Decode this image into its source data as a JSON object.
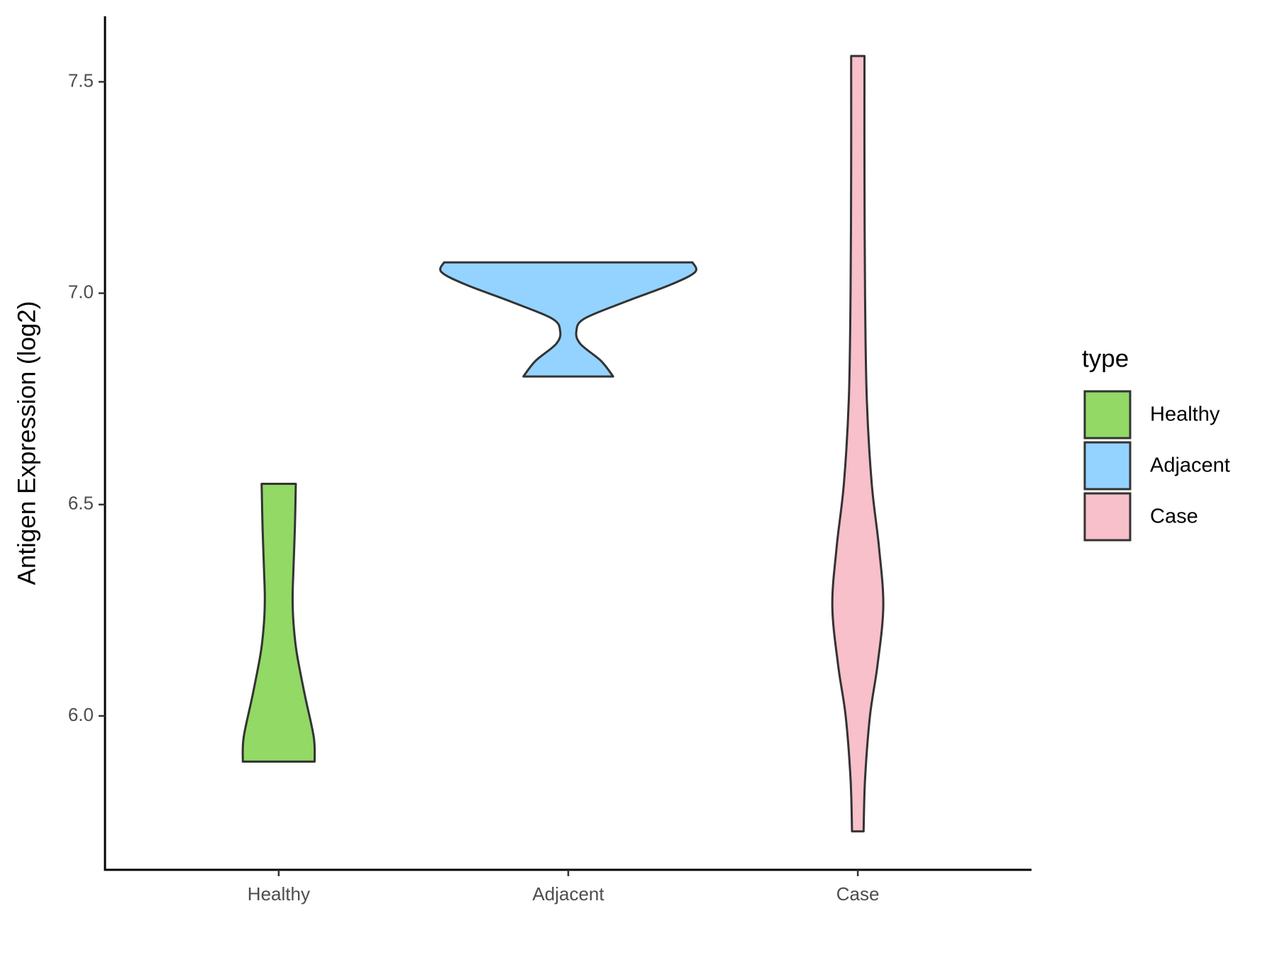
{
  "chart_data": {
    "type": "violin",
    "y_label": "Antigen Expression (log2)",
    "legend_title": "type",
    "legend_position": "right",
    "categories": [
      "Healthy",
      "Adjacent",
      "Case"
    ],
    "series": [
      {
        "name": "Healthy",
        "color": "#92d966",
        "y": [
          5.892,
          5.95,
          6.05,
          6.15,
          6.22,
          6.28,
          6.35,
          6.45,
          6.549
        ],
        "widths": [
          0.124,
          0.121,
          0.09,
          0.062,
          0.051,
          0.048,
          0.051,
          0.056,
          0.059
        ]
      },
      {
        "name": "Adjacent",
        "color": "#94d3ff",
        "y": [
          6.803,
          6.84,
          6.88,
          6.91,
          6.94,
          6.98,
          7.02,
          7.05,
          7.073
        ],
        "widths": [
          0.155,
          0.113,
          0.042,
          0.028,
          0.056,
          0.198,
          0.353,
          0.438,
          0.429
        ]
      },
      {
        "name": "Case",
        "color": "#f7c0cb",
        "y": [
          5.727,
          5.85,
          6.0,
          6.12,
          6.26,
          6.4,
          6.55,
          6.75,
          7.0,
          7.3,
          7.561
        ],
        "widths": [
          0.02,
          0.025,
          0.042,
          0.068,
          0.088,
          0.073,
          0.048,
          0.031,
          0.025,
          0.023,
          0.023
        ]
      }
    ],
    "ylim": [
      5.636,
      7.655
    ],
    "yticks": [
      {
        "value": 6,
        "label": "6.0"
      },
      6.5,
      {
        "value": 7,
        "label": "7.0"
      },
      7.5
    ],
    "grid": false
  }
}
